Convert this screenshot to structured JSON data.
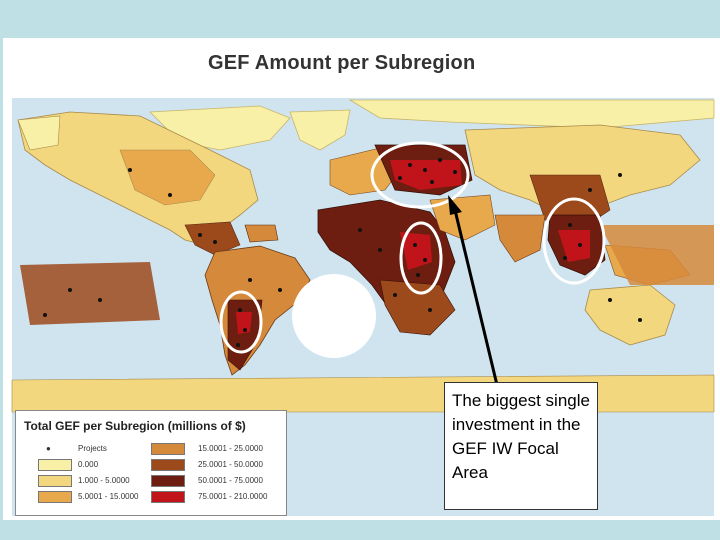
{
  "title": "GEF Amount per Subregion",
  "legend": {
    "title": "Total GEF per Subregion (millions of $)",
    "projects_label": "Projects",
    "classes": [
      {
        "label": "0.000",
        "color": "#f7f0a6"
      },
      {
        "label": "1.000 - 5.0000",
        "color": "#f3d77e"
      },
      {
        "label": "5.0001 - 15.0000",
        "color": "#e8a84c"
      },
      {
        "label": "15.0001 - 25.0000",
        "color": "#d5893a"
      },
      {
        "label": "25.0001 - 50.0000",
        "color": "#9c4a1c"
      },
      {
        "label": "50.0001 - 75.0000",
        "color": "#6e1e10"
      },
      {
        "label": "75.0001 - 210.0000",
        "color": "#c0141a"
      }
    ]
  },
  "callout_text": "The biggest single investment in the GEF IW Focal Area",
  "colors": {
    "ocean": "#cfe4ef",
    "frame_band": "#bfe0e4"
  }
}
